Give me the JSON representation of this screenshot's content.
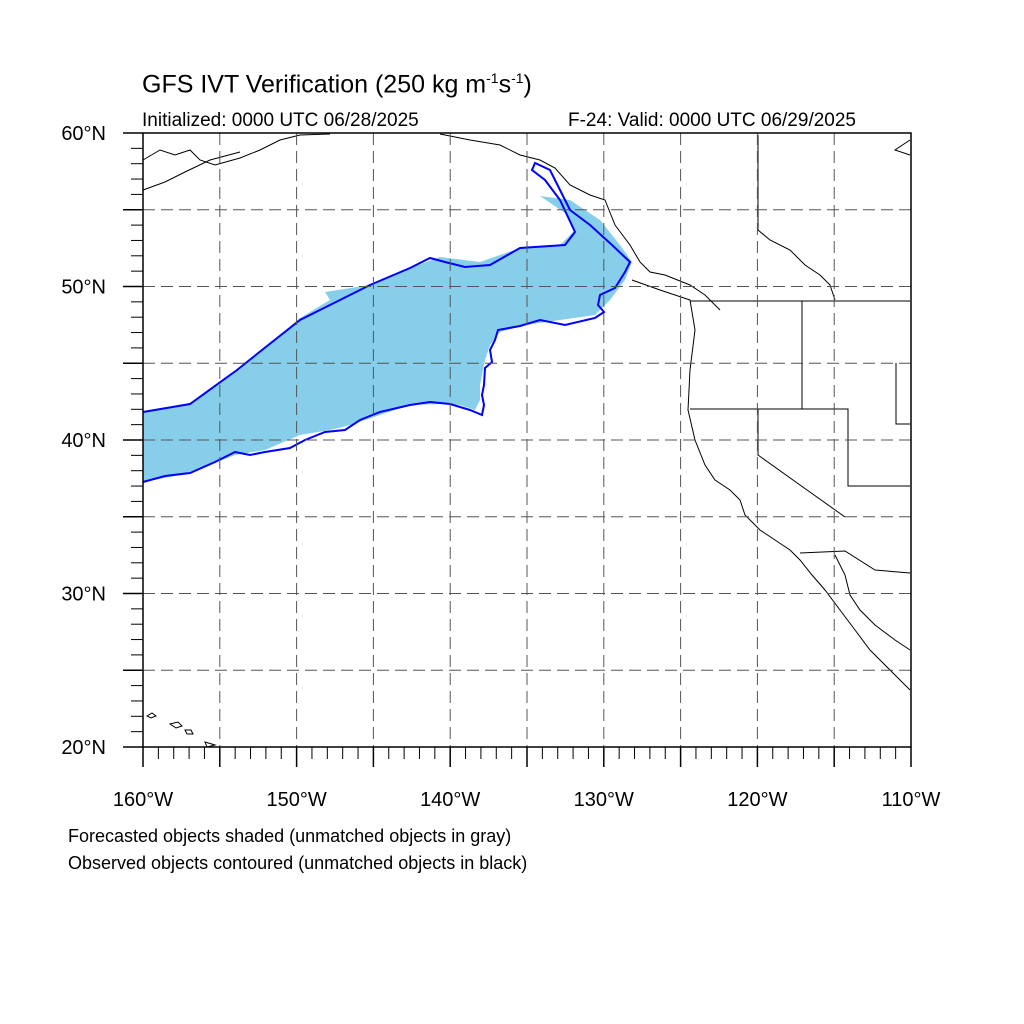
{
  "title_main": "GFS IVT Verification (250 kg m",
  "title_sup1": "-1",
  "title_mid": "s",
  "title_sup2": "-1",
  "title_end": ")",
  "initialized": "Initialized: 0000 UTC 06/28/2025",
  "valid": "F-24: Valid: 0000 UTC 06/29/2025",
  "legend_note_1": "Forecasted objects shaded (unmatched objects in gray)",
  "legend_note_2": "Observed objects contoured (unmatched objects in black)",
  "map": {
    "projection": "cylindrical equidistant",
    "lon_range": [
      -160,
      -110
    ],
    "lat_range": [
      20,
      60
    ],
    "gridlines": "dashed",
    "lat_labels": [
      "20°N",
      "30°N",
      "40°N",
      "50°N",
      "60°N"
    ],
    "lon_labels": [
      "160°W",
      "150°W",
      "140°W",
      "130°W",
      "120°W",
      "110°W"
    ],
    "colors": {
      "forecast_fill": "#87ceeb",
      "observed_contour": "#0000ff",
      "coastline": "#000000",
      "grid": "#555555"
    }
  }
}
